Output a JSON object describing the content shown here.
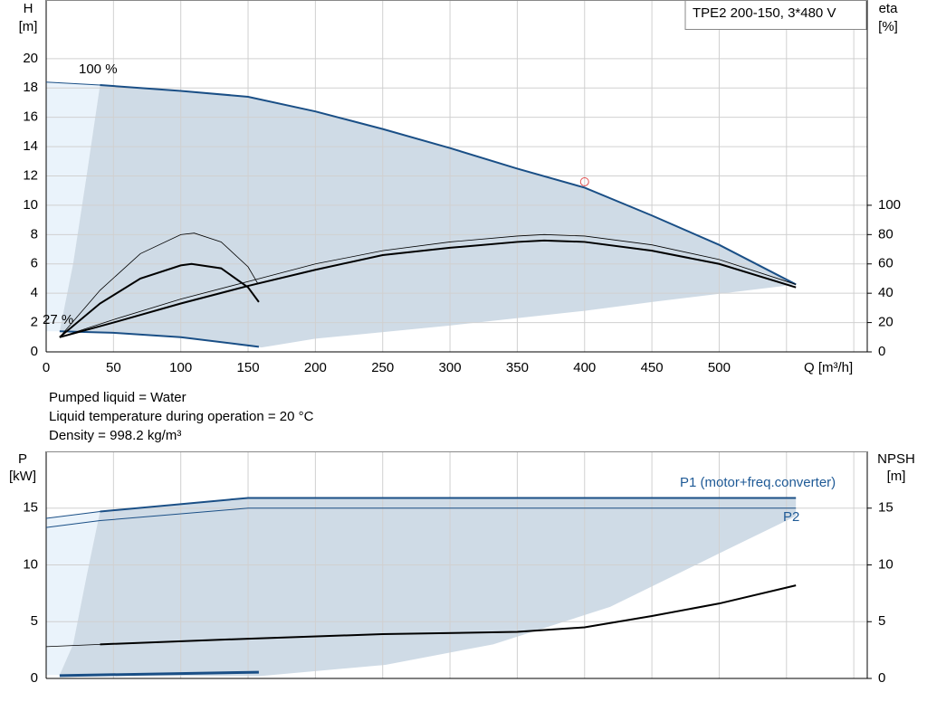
{
  "chart_data": [
    {
      "type": "line",
      "title": "TPE2 200-150, 3*480 V",
      "ylabel": [
        "H",
        "[m]"
      ],
      "y2label": [
        "eta",
        "[%]"
      ],
      "xlabel": "Q [m³/h]",
      "xlim": [
        0,
        610
      ],
      "xticks": [
        0,
        50,
        100,
        150,
        200,
        250,
        300,
        350,
        400,
        450,
        500
      ],
      "xgrid": [
        550,
        600
      ],
      "ylim": [
        0,
        24
      ],
      "yticks": [
        0,
        2,
        4,
        6,
        8,
        10,
        12,
        14,
        16,
        18,
        20
      ],
      "y2lim": [
        0,
        240
      ],
      "y2ticks": [
        0,
        20,
        40,
        60,
        80,
        100
      ],
      "grid": true,
      "areas": [
        {
          "color": "#eaf3fb",
          "x": [
            0,
            0,
            40,
            30,
            20,
            10,
            0
          ],
          "values": [
            0,
            18.4,
            18.2,
            12,
            6,
            1.4,
            1.4
          ]
        },
        {
          "color": "#cfdbe6",
          "x": [
            40,
            100,
            150,
            200,
            250,
            300,
            350,
            400,
            450,
            500,
            557,
            450,
            400,
            300,
            200,
            160,
            100,
            50,
            10,
            20,
            30
          ],
          "values": [
            18.2,
            17.8,
            17.4,
            16.4,
            15.2,
            13.9,
            12.5,
            11.2,
            9.3,
            7.3,
            4.6,
            3.4,
            2.8,
            1.8,
            0.9,
            0.3,
            1.0,
            1.3,
            1.4,
            6,
            12
          ]
        }
      ],
      "series": [
        {
          "name": "100 %",
          "color": "#1a4f86",
          "lw": 2,
          "x": [
            40,
            100,
            150,
            200,
            250,
            300,
            350,
            400,
            450,
            500,
            557
          ],
          "values": [
            18.2,
            17.8,
            17.4,
            16.4,
            15.2,
            13.9,
            12.5,
            11.2,
            9.3,
            7.3,
            4.6
          ]
        },
        {
          "color": "#1a4f86",
          "lw": 1,
          "x": [
            0,
            40
          ],
          "values": [
            18.4,
            18.2
          ]
        },
        {
          "name": "27 %",
          "color": "#1a4f86",
          "lw": 2,
          "x": [
            10,
            50,
            100,
            158
          ],
          "values": [
            1.4,
            1.3,
            1.0,
            0.35
          ]
        },
        {
          "color": "#000000",
          "lw": 2,
          "axis": "y2",
          "x": [
            10,
            50,
            100,
            150,
            200,
            250,
            300,
            350,
            370,
            400,
            450,
            500,
            557
          ],
          "values": [
            10,
            20,
            33,
            45,
            56,
            66,
            71,
            75,
            76,
            75,
            69,
            60,
            44
          ]
        },
        {
          "color": "#000000",
          "lw": 0.8,
          "axis": "y2",
          "x": [
            10,
            50,
            100,
            150,
            200,
            250,
            300,
            350,
            370,
            400,
            450,
            500,
            557
          ],
          "values": [
            10,
            22,
            36,
            48,
            60,
            69,
            75,
            79,
            80,
            79,
            73,
            63,
            46
          ]
        },
        {
          "color": "#000000",
          "lw": 2,
          "axis": "y2",
          "x": [
            10,
            40,
            70,
            100,
            108,
            130,
            150,
            158
          ],
          "values": [
            10,
            33,
            50,
            59,
            60,
            57,
            44,
            34
          ]
        },
        {
          "color": "#000000",
          "lw": 0.8,
          "axis": "y2",
          "x": [
            10,
            40,
            70,
            100,
            110,
            130,
            150,
            157
          ],
          "values": [
            10,
            42,
            67,
            80,
            81,
            75,
            58,
            47
          ]
        }
      ],
      "duty_point": {
        "color": "#e05050",
        "x": 400,
        "y": 11.6
      }
    },
    {
      "type": "line",
      "ylabel": [
        "P",
        "[kW]"
      ],
      "y2label": [
        "NPSH",
        "[m]"
      ],
      "xlim": [
        0,
        610
      ],
      "xgrid": [
        0,
        50,
        100,
        150,
        200,
        250,
        300,
        350,
        400,
        450,
        500,
        550,
        600
      ],
      "ylim": [
        0,
        20
      ],
      "yticks": [
        0,
        5,
        10,
        15
      ],
      "y2lim": [
        0,
        20
      ],
      "y2ticks": [
        0,
        5,
        10,
        15
      ],
      "grid": true,
      "areas": [
        {
          "color": "#eaf3fb",
          "x": [
            0,
            0,
            40,
            30,
            20,
            10
          ],
          "values": [
            0.3,
            14.1,
            14.7,
            9,
            3,
            0.3
          ]
        },
        {
          "color": "#cfdbe6",
          "x": [
            40,
            150,
            557,
            557,
            505,
            419,
            332,
            252,
            158,
            10,
            20,
            30
          ],
          "values": [
            14.7,
            15.9,
            15.9,
            14.3,
            11.3,
            6.3,
            3.0,
            1.2,
            0.2,
            0.3,
            3,
            9
          ]
        }
      ],
      "series": [
        {
          "name": "P1 (motor+freq.converter)",
          "color": "#1a4f86",
          "lw": 2,
          "x": [
            40,
            150,
            557
          ],
          "values": [
            14.7,
            15.9,
            15.9
          ]
        },
        {
          "color": "#1a4f86",
          "lw": 1,
          "x": [
            0,
            40
          ],
          "values": [
            14.1,
            14.7
          ]
        },
        {
          "name": "P2",
          "color": "#1a4f86",
          "lw": 1,
          "x": [
            0,
            40,
            150,
            557
          ],
          "values": [
            13.3,
            13.9,
            15.0,
            15.0
          ]
        },
        {
          "color": "#000000",
          "lw": 2,
          "axis": "y2",
          "x": [
            40,
            150,
            250,
            350,
            400,
            450,
            500,
            557
          ],
          "values": [
            3.0,
            3.5,
            3.9,
            4.1,
            4.5,
            5.5,
            6.6,
            8.2
          ]
        },
        {
          "color": "#000000",
          "lw": 0.8,
          "axis": "y2",
          "x": [
            0,
            40
          ],
          "values": [
            2.8,
            3.0
          ]
        },
        {
          "color": "#1a4f86",
          "lw": 3,
          "x": [
            10,
            158
          ],
          "values": [
            0.25,
            0.55
          ]
        }
      ]
    }
  ],
  "notes": [
    "Pumped liquid = Water",
    "Liquid temperature during operation = 20 °C",
    "Density = 998.2 kg/m³"
  ]
}
